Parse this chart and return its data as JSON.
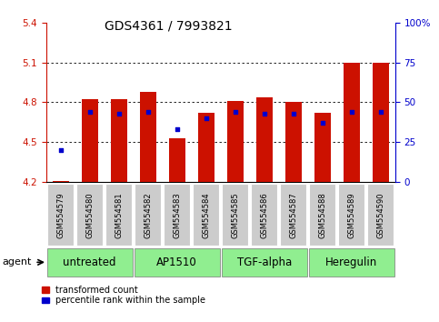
{
  "title": "GDS4361 / 7993821",
  "samples": [
    "GSM554579",
    "GSM554580",
    "GSM554581",
    "GSM554582",
    "GSM554583",
    "GSM554584",
    "GSM554585",
    "GSM554586",
    "GSM554587",
    "GSM554588",
    "GSM554589",
    "GSM554590"
  ],
  "bar_values": [
    4.21,
    4.82,
    4.82,
    4.88,
    4.53,
    4.72,
    4.81,
    4.84,
    4.8,
    4.72,
    5.1,
    5.1
  ],
  "percentile_ranks": [
    20,
    44,
    43,
    44,
    33,
    40,
    44,
    43,
    43,
    37,
    44,
    44
  ],
  "ymin": 4.2,
  "ymax": 5.4,
  "yticks": [
    4.2,
    4.5,
    4.8,
    5.1,
    5.4
  ],
  "y2min": 0,
  "y2max": 100,
  "y2ticks": [
    0,
    25,
    50,
    75,
    100
  ],
  "y2ticklabels": [
    "0",
    "25",
    "50",
    "75",
    "100%"
  ],
  "groups": [
    {
      "label": "untreated",
      "start": 0,
      "end": 3
    },
    {
      "label": "AP1510",
      "start": 3,
      "end": 6
    },
    {
      "label": "TGF-alpha",
      "start": 6,
      "end": 9
    },
    {
      "label": "Heregulin",
      "start": 9,
      "end": 12
    }
  ],
  "group_color": "#90EE90",
  "bar_color": "#CC1100",
  "dot_color": "#0000CC",
  "bar_width": 0.55,
  "background_color": "#ffffff",
  "tick_label_bg": "#cccccc",
  "ylabel_color": "#CC1100",
  "y2label_color": "#0000CC",
  "legend_items": [
    {
      "label": "transformed count",
      "color": "#CC1100"
    },
    {
      "label": "percentile rank within the sample",
      "color": "#0000CC"
    }
  ],
  "agent_label": "agent",
  "title_fontsize": 10,
  "tick_fontsize": 7.5,
  "sample_fontsize": 6,
  "group_label_fontsize": 8.5
}
